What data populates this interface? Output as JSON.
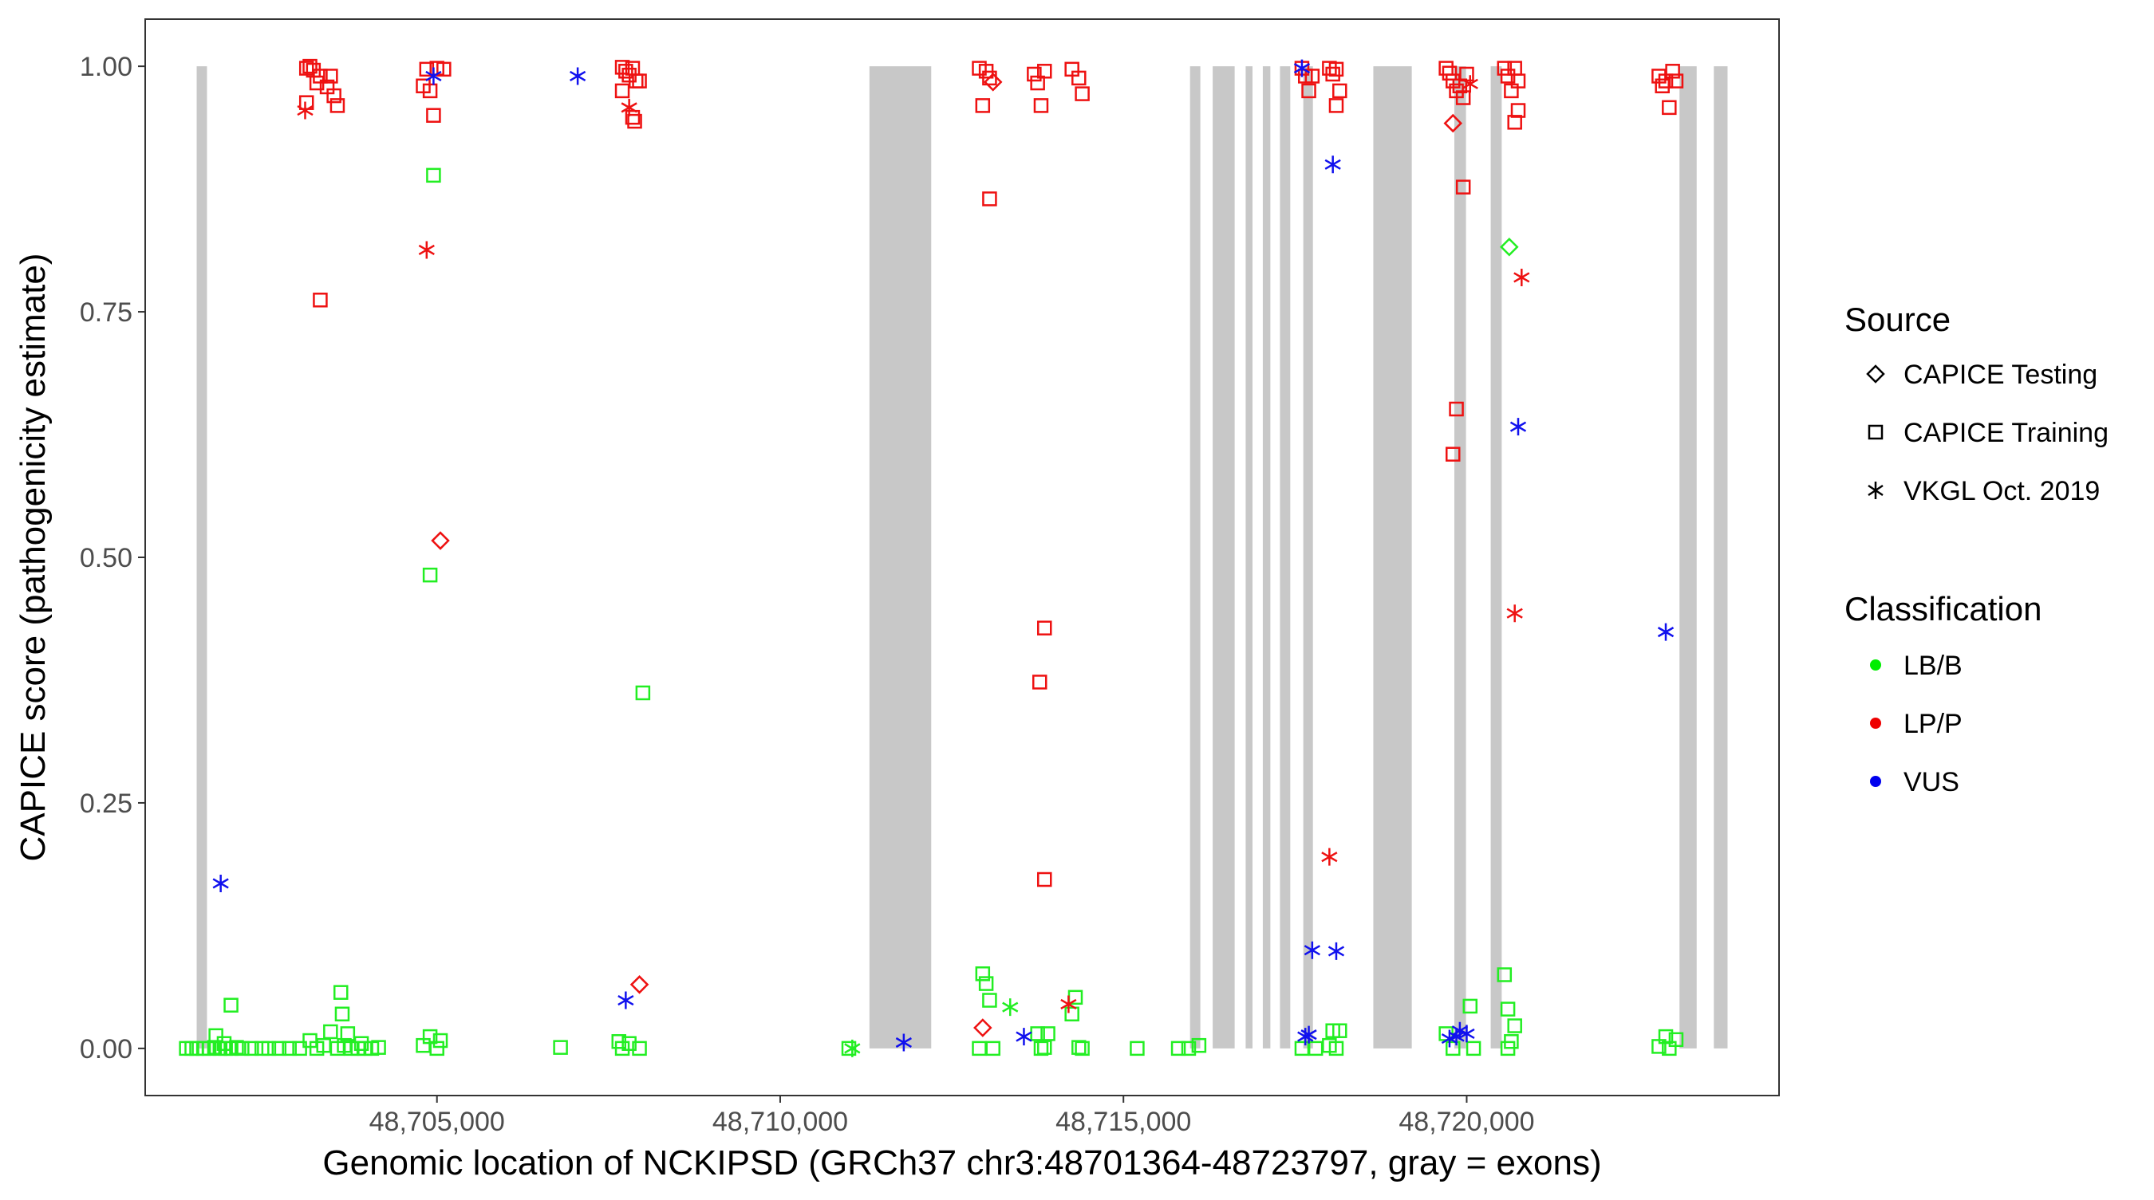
{
  "chart_data": {
    "type": "scatter",
    "title": "",
    "xlabel": "Genomic location of NCKIPSD (GRCh37 chr3:48701364-48723797, gray = exons)",
    "ylabel": "CAPICE score (pathogenicity estimate)",
    "xlim": [
      48700750,
      48724550
    ],
    "ylim": [
      -0.048,
      1.048
    ],
    "x_ticks": [
      {
        "value": 48705000,
        "label": "48,705,000"
      },
      {
        "value": 48710000,
        "label": "48,710,000"
      },
      {
        "value": 48715000,
        "label": "48,715,000"
      },
      {
        "value": 48720000,
        "label": "48,720,000"
      }
    ],
    "y_ticks": [
      {
        "value": 0,
        "label": "0.00"
      },
      {
        "value": 0.25,
        "label": "0.25"
      },
      {
        "value": 0.5,
        "label": "0.50"
      },
      {
        "value": 0.75,
        "label": "0.75"
      },
      {
        "value": 1,
        "label": "1.00"
      }
    ],
    "grid": false,
    "exon_band_color": "#c8c8c8",
    "exons": [
      [
        48701500,
        48701650
      ],
      [
        48711300,
        48712200
      ],
      [
        48715970,
        48716120
      ],
      [
        48716300,
        48716620
      ],
      [
        48716780,
        48716880
      ],
      [
        48717030,
        48717140
      ],
      [
        48717280,
        48717430
      ],
      [
        48717620,
        48717760
      ],
      [
        48718640,
        48719200
      ],
      [
        48719820,
        48719990
      ],
      [
        48720350,
        48720510
      ],
      [
        48723100,
        48723350
      ],
      [
        48723600,
        48723800
      ]
    ],
    "legend": {
      "position": "right",
      "source_title": "Source",
      "source_entries": [
        {
          "label": "CAPICE Testing",
          "shape": "diamond"
        },
        {
          "label": "CAPICE Training",
          "shape": "square"
        },
        {
          "label": "VKGL Oct. 2019",
          "shape": "star"
        }
      ],
      "class_title": "Classification",
      "class_entries": [
        {
          "label": "LB/B",
          "color": "#00ee00"
        },
        {
          "label": "LP/P",
          "color": "#ee0000"
        },
        {
          "label": "VUS",
          "color": "#0000ee"
        }
      ]
    },
    "series": [
      {
        "classification": "LB/B",
        "color": "#22ee22",
        "points": [
          [
            48701350,
            0,
            "s"
          ],
          [
            48701430,
            0,
            "s"
          ],
          [
            48701500,
            0,
            "s"
          ],
          [
            48701600,
            0,
            "s"
          ],
          [
            48701680,
            0,
            "s"
          ],
          [
            48701760,
            0.001,
            "s"
          ],
          [
            48701840,
            0,
            "s"
          ],
          [
            48701920,
            0,
            "s"
          ],
          [
            48702000,
            0,
            "s"
          ],
          [
            48702080,
            0.001,
            "s"
          ],
          [
            48702160,
            0,
            "s"
          ],
          [
            48702300,
            0,
            "s"
          ],
          [
            48702450,
            0,
            "s"
          ],
          [
            48702550,
            0,
            "s"
          ],
          [
            48702700,
            0,
            "s"
          ],
          [
            48701780,
            0.013,
            "s"
          ],
          [
            48701900,
            0.005,
            "s"
          ],
          [
            48702000,
            0.044,
            "s"
          ],
          [
            48702850,
            0,
            "s"
          ],
          [
            48703000,
            0,
            "s"
          ],
          [
            48703150,
            0.008,
            "s"
          ],
          [
            48703250,
            0,
            "s"
          ],
          [
            48703350,
            0.003,
            "s"
          ],
          [
            48703450,
            0.017,
            "s"
          ],
          [
            48703550,
            0,
            "s"
          ],
          [
            48703650,
            0.003,
            "s"
          ],
          [
            48703750,
            0,
            "s"
          ],
          [
            48703850,
            0,
            "s"
          ],
          [
            48703950,
            0,
            "s"
          ],
          [
            48704050,
            0,
            "s"
          ],
          [
            48704150,
            0.001,
            "s"
          ],
          [
            48703600,
            0.057,
            "s"
          ],
          [
            48703620,
            0.035,
            "s"
          ],
          [
            48703700,
            0.015,
            "s"
          ],
          [
            48703900,
            0.005,
            "s"
          ],
          [
            48704800,
            0.003,
            "s"
          ],
          [
            48704900,
            0.012,
            "s"
          ],
          [
            48705000,
            0,
            "s"
          ],
          [
            48705050,
            0.008,
            "s"
          ],
          [
            48704900,
            0.482,
            "s"
          ],
          [
            48704950,
            0.889,
            "s"
          ],
          [
            48706800,
            0.001,
            "s"
          ],
          [
            48707650,
            0.007,
            "s"
          ],
          [
            48707700,
            0,
            "s"
          ],
          [
            48707800,
            0.005,
            "s"
          ],
          [
            48707950,
            0,
            "s"
          ],
          [
            48708000,
            0.362,
            "s"
          ],
          [
            48711000,
            0,
            "s"
          ],
          [
            48711050,
            0,
            "*"
          ],
          [
            48712950,
            0.076,
            "s"
          ],
          [
            48713000,
            0.066,
            "s"
          ],
          [
            48713050,
            0.049,
            "s"
          ],
          [
            48712900,
            0,
            "s"
          ],
          [
            48713100,
            0,
            "s"
          ],
          [
            48713350,
            0.042,
            "*"
          ],
          [
            48713750,
            0.015,
            "s"
          ],
          [
            48713850,
            0.001,
            "s"
          ],
          [
            48713900,
            0.015,
            "s"
          ],
          [
            48713800,
            0,
            "s"
          ],
          [
            48714250,
            0.035,
            "s"
          ],
          [
            48714300,
            0.052,
            "s"
          ],
          [
            48714350,
            0.001,
            "s"
          ],
          [
            48714400,
            0,
            "s"
          ],
          [
            48715200,
            0,
            "s"
          ],
          [
            48715800,
            0,
            "s"
          ],
          [
            48715950,
            0,
            "s"
          ],
          [
            48716100,
            0.003,
            "s"
          ],
          [
            48717600,
            0,
            "s"
          ],
          [
            48717800,
            0,
            "s"
          ],
          [
            48718000,
            0.003,
            "s"
          ],
          [
            48718050,
            0.018,
            "s"
          ],
          [
            48718150,
            0.018,
            "s"
          ],
          [
            48718100,
            0,
            "s"
          ],
          [
            48719700,
            0.015,
            "s"
          ],
          [
            48719800,
            0,
            "s"
          ],
          [
            48720050,
            0.043,
            "s"
          ],
          [
            48720100,
            0,
            "s"
          ],
          [
            48720550,
            0.075,
            "s"
          ],
          [
            48720600,
            0.04,
            "s"
          ],
          [
            48720650,
            0.007,
            "s"
          ],
          [
            48720700,
            0.023,
            "s"
          ],
          [
            48720600,
            0,
            "s"
          ],
          [
            48720620,
            0.816,
            "d"
          ],
          [
            48722800,
            0.002,
            "s"
          ],
          [
            48722900,
            0.012,
            "s"
          ],
          [
            48723050,
            0.009,
            "s"
          ],
          [
            48722950,
            0,
            "s"
          ]
        ]
      },
      {
        "classification": "LP/P",
        "color": "#ee1111",
        "points": [
          [
            48703100,
            0.998,
            "s"
          ],
          [
            48703150,
            1.0,
            "s"
          ],
          [
            48703200,
            0.996,
            "s"
          ],
          [
            48703250,
            0.983,
            "s"
          ],
          [
            48703300,
            0.99,
            "s"
          ],
          [
            48703400,
            0.979,
            "s"
          ],
          [
            48703450,
            0.99,
            "s"
          ],
          [
            48703500,
            0.97,
            "s"
          ],
          [
            48703550,
            0.96,
            "s"
          ],
          [
            48703100,
            0.963,
            "s"
          ],
          [
            48703080,
            0.955,
            "*"
          ],
          [
            48703300,
            0.762,
            "s"
          ],
          [
            48704800,
            0.98,
            "s"
          ],
          [
            48704850,
            0.997,
            "s"
          ],
          [
            48704900,
            0.975,
            "s"
          ],
          [
            48704950,
            0.95,
            "s"
          ],
          [
            48705000,
            0.998,
            "s"
          ],
          [
            48705100,
            0.997,
            "s"
          ],
          [
            48704850,
            0.813,
            "*"
          ],
          [
            48705050,
            0.517,
            "d"
          ],
          [
            48707700,
            0.999,
            "s"
          ],
          [
            48707750,
            0.995,
            "s"
          ],
          [
            48707800,
            0.991,
            "s"
          ],
          [
            48707850,
            0.998,
            "s"
          ],
          [
            48707900,
            0.985,
            "s"
          ],
          [
            48707950,
            0.985,
            "s"
          ],
          [
            48707700,
            0.975,
            "s"
          ],
          [
            48707800,
            0.958,
            "*"
          ],
          [
            48707850,
            0.948,
            "s"
          ],
          [
            48707880,
            0.944,
            "s"
          ],
          [
            48707950,
            0.065,
            "d"
          ],
          [
            48712900,
            0.998,
            "s"
          ],
          [
            48713000,
            0.995,
            "s"
          ],
          [
            48713050,
            0.988,
            "s"
          ],
          [
            48713100,
            0.984,
            "d"
          ],
          [
            48712950,
            0.96,
            "s"
          ],
          [
            48713050,
            0.865,
            "s"
          ],
          [
            48712950,
            0.021,
            "d"
          ],
          [
            48713700,
            0.992,
            "s"
          ],
          [
            48713750,
            0.983,
            "s"
          ],
          [
            48713850,
            0.995,
            "s"
          ],
          [
            48713800,
            0.96,
            "s"
          ],
          [
            48713850,
            0.428,
            "s"
          ],
          [
            48713780,
            0.373,
            "s"
          ],
          [
            48713850,
            0.172,
            "s"
          ],
          [
            48714250,
            0.997,
            "s"
          ],
          [
            48714350,
            0.988,
            "s"
          ],
          [
            48714400,
            0.972,
            "s"
          ],
          [
            48714200,
            0.045,
            "*"
          ],
          [
            48717600,
            0.998,
            "s"
          ],
          [
            48717650,
            0.99,
            "s"
          ],
          [
            48717700,
            0.975,
            "s"
          ],
          [
            48717750,
            0.99,
            "s"
          ],
          [
            48718000,
            0.998,
            "s"
          ],
          [
            48718050,
            0.992,
            "s"
          ],
          [
            48718100,
            0.96,
            "s"
          ],
          [
            48718150,
            0.975,
            "s"
          ],
          [
            48718100,
            0.997,
            "s"
          ],
          [
            48718000,
            0.195,
            "*"
          ],
          [
            48719700,
            0.998,
            "s"
          ],
          [
            48719750,
            0.993,
            "s"
          ],
          [
            48719800,
            0.985,
            "s"
          ],
          [
            48719850,
            0.975,
            "s"
          ],
          [
            48719900,
            0.98,
            "s"
          ],
          [
            48719950,
            0.968,
            "s"
          ],
          [
            48720000,
            0.992,
            "s"
          ],
          [
            48720050,
            0.982,
            "*"
          ],
          [
            48719800,
            0.942,
            "d"
          ],
          [
            48719950,
            0.877,
            "s"
          ],
          [
            48719850,
            0.651,
            "s"
          ],
          [
            48719800,
            0.605,
            "s"
          ],
          [
            48720550,
            0.998,
            "s"
          ],
          [
            48720600,
            0.99,
            "s"
          ],
          [
            48720650,
            0.975,
            "s"
          ],
          [
            48720700,
            0.998,
            "s"
          ],
          [
            48720750,
            0.985,
            "s"
          ],
          [
            48720700,
            0.943,
            "s"
          ],
          [
            48720750,
            0.955,
            "s"
          ],
          [
            48720800,
            0.785,
            "*"
          ],
          [
            48720700,
            0.443,
            "*"
          ],
          [
            48722800,
            0.99,
            "s"
          ],
          [
            48722900,
            0.985,
            "s"
          ],
          [
            48723000,
            0.995,
            "s"
          ],
          [
            48723050,
            0.985,
            "s"
          ],
          [
            48722850,
            0.98,
            "s"
          ],
          [
            48722950,
            0.958,
            "s"
          ]
        ]
      },
      {
        "classification": "VUS",
        "color": "#1111ee",
        "points": [
          [
            48701850,
            0.168,
            "*"
          ],
          [
            48704950,
            0.99,
            "*"
          ],
          [
            48707050,
            0.99,
            "*"
          ],
          [
            48707750,
            0.049,
            "*"
          ],
          [
            48711800,
            0.006,
            "*"
          ],
          [
            48713550,
            0.012,
            "*"
          ],
          [
            48717600,
            0.998,
            "*"
          ],
          [
            48717650,
            0.012,
            "*"
          ],
          [
            48717700,
            0.014,
            "*"
          ],
          [
            48717750,
            0.1,
            "*"
          ],
          [
            48718050,
            0.9,
            "*"
          ],
          [
            48718100,
            0.099,
            "*"
          ],
          [
            48719750,
            0.01,
            "*"
          ],
          [
            48719850,
            0.012,
            "*"
          ],
          [
            48719900,
            0.018,
            "*"
          ],
          [
            48720000,
            0.015,
            "*"
          ],
          [
            48720750,
            0.633,
            "*"
          ],
          [
            48722900,
            0.424,
            "*"
          ]
        ]
      }
    ]
  }
}
